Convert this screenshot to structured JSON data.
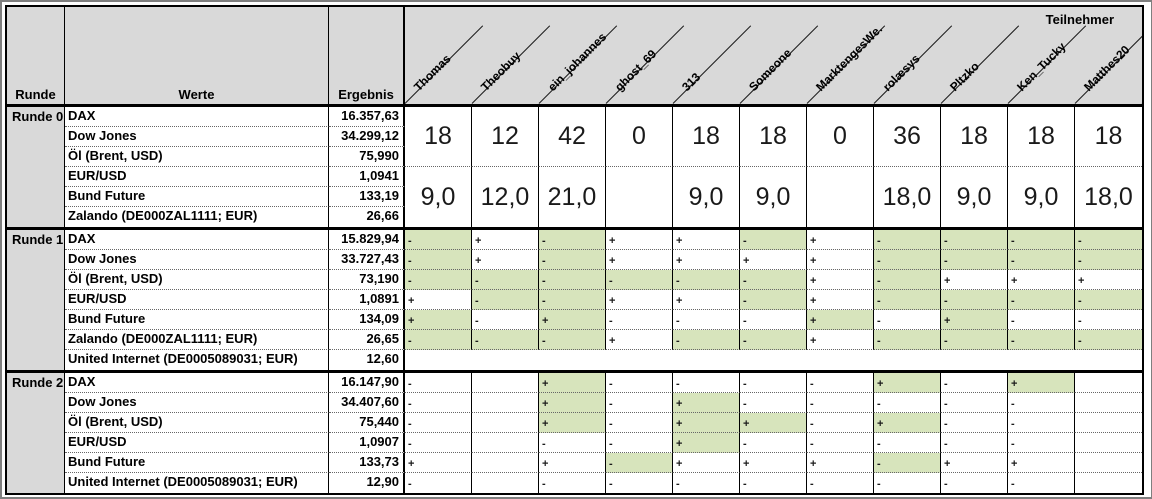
{
  "header": {
    "runde_label": "Runde",
    "werte_label": "Werte",
    "ergebnis_label": "Ergebnis",
    "teilnehmer_label": "Teilnehmer"
  },
  "participants": [
    "Thomas",
    "Theobuy",
    "ein_johannes",
    "ghost_69",
    "313",
    "Someone",
    "MarktengesWe.",
    "rolæsys",
    "Pltzko",
    "Ken_Tucky",
    "Matthes20"
  ],
  "colors": {
    "header_bg": "#d9d9d9",
    "correct_bg": "#d7e4bc",
    "grid_line": "#000000",
    "text": "#000000"
  },
  "rounds": [
    {
      "label": "Runde 0",
      "assets": [
        {
          "name": "DAX",
          "result": "16.357,63"
        },
        {
          "name": "Dow Jones",
          "result": "34.299,12"
        },
        {
          "name": "Öl (Brent, USD)",
          "result": "75,990"
        },
        {
          "name": "EUR/USD",
          "result": "1,0941"
        },
        {
          "name": "Bund Future",
          "result": "133,19"
        },
        {
          "name": "Zalando (DE000ZAL1111; EUR)",
          "result": "26,66"
        }
      ],
      "scores_upper": [
        "18",
        "12",
        "42",
        "0",
        "18",
        "18",
        "0",
        "36",
        "18",
        "18",
        "18"
      ],
      "scores_lower": [
        "9,0",
        "12,0",
        "21,0",
        "",
        "9,0",
        "9,0",
        "",
        "18,0",
        "9,0",
        "9,0",
        "18,0"
      ]
    },
    {
      "label": "Runde 1",
      "assets": [
        {
          "name": "DAX",
          "result": "15.829,94",
          "signs": [
            "-",
            "+",
            "-",
            "+",
            "+",
            "-",
            "+",
            "-",
            "-",
            "-",
            "-"
          ],
          "correct": [
            1,
            0,
            1,
            0,
            0,
            1,
            0,
            1,
            1,
            1,
            1
          ]
        },
        {
          "name": "Dow Jones",
          "result": "33.727,43",
          "signs": [
            "-",
            "+",
            "-",
            "+",
            "+",
            "+",
            "+",
            "-",
            "-",
            "-",
            "-"
          ],
          "correct": [
            1,
            0,
            1,
            0,
            0,
            0,
            0,
            1,
            1,
            1,
            1
          ]
        },
        {
          "name": "Öl (Brent, USD)",
          "result": "73,190",
          "signs": [
            "-",
            "-",
            "-",
            "-",
            "-",
            "-",
            "+",
            "-",
            "+",
            "+",
            "+"
          ],
          "correct": [
            1,
            1,
            1,
            1,
            1,
            1,
            0,
            1,
            0,
            0,
            0
          ]
        },
        {
          "name": "EUR/USD",
          "result": "1,0891",
          "signs": [
            "+",
            "-",
            "-",
            "+",
            "+",
            "-",
            "+",
            "-",
            "-",
            "-",
            "-"
          ],
          "correct": [
            0,
            1,
            1,
            0,
            0,
            1,
            0,
            1,
            1,
            1,
            1
          ]
        },
        {
          "name": "Bund Future",
          "result": "134,09",
          "signs": [
            "+",
            "-",
            "+",
            "-",
            "-",
            "-",
            "+",
            "-",
            "+",
            "-",
            "-"
          ],
          "correct": [
            1,
            0,
            1,
            0,
            0,
            0,
            1,
            0,
            1,
            0,
            0
          ]
        },
        {
          "name": "Zalando (DE000ZAL1111; EUR)",
          "result": "26,65",
          "signs": [
            "-",
            "-",
            "-",
            "+",
            "-",
            "-",
            "+",
            "-",
            "-",
            "-",
            "-"
          ],
          "correct": [
            1,
            1,
            1,
            0,
            1,
            1,
            0,
            1,
            1,
            1,
            1
          ]
        },
        {
          "name": "United Internet (DE0005089031; EUR)",
          "result": "12,60",
          "signs": null
        }
      ]
    },
    {
      "label": "Runde 2",
      "assets": [
        {
          "name": "DAX",
          "result": "16.147,90",
          "signs": [
            "-",
            "",
            "+",
            "-",
            "-",
            "-",
            "-",
            "+",
            "-",
            "+",
            ""
          ],
          "correct": [
            0,
            0,
            1,
            0,
            0,
            0,
            0,
            1,
            0,
            1,
            0
          ]
        },
        {
          "name": "Dow Jones",
          "result": "34.407,60",
          "signs": [
            "-",
            "",
            "+",
            "-",
            "+",
            "-",
            "-",
            "-",
            "-",
            "-",
            ""
          ],
          "correct": [
            0,
            0,
            1,
            0,
            1,
            0,
            0,
            0,
            0,
            0,
            0
          ]
        },
        {
          "name": "Öl (Brent, USD)",
          "result": "75,440",
          "signs": [
            "-",
            "",
            "+",
            "-",
            "+",
            "+",
            "-",
            "+",
            "-",
            "-",
            ""
          ],
          "correct": [
            0,
            0,
            1,
            0,
            1,
            1,
            0,
            1,
            0,
            0,
            0
          ]
        },
        {
          "name": "EUR/USD",
          "result": "1,0907",
          "signs": [
            "-",
            "",
            "-",
            "-",
            "+",
            "-",
            "-",
            "-",
            "-",
            "-",
            ""
          ],
          "correct": [
            0,
            0,
            0,
            0,
            1,
            0,
            0,
            0,
            0,
            0,
            0
          ]
        },
        {
          "name": "Bund Future",
          "result": "133,73",
          "signs": [
            "+",
            "",
            "+",
            "-",
            "+",
            "+",
            "+",
            "-",
            "+",
            "+",
            ""
          ],
          "correct": [
            0,
            0,
            0,
            1,
            0,
            0,
            0,
            1,
            0,
            0,
            0
          ]
        },
        {
          "name": "United Internet (DE0005089031; EUR)",
          "result": "12,90",
          "signs": [
            "-",
            "",
            "-",
            "-",
            "-",
            "-",
            "-",
            "-",
            "-",
            "-",
            ""
          ],
          "correct": [
            0,
            0,
            0,
            0,
            0,
            0,
            0,
            0,
            0,
            0,
            0
          ]
        }
      ]
    }
  ]
}
